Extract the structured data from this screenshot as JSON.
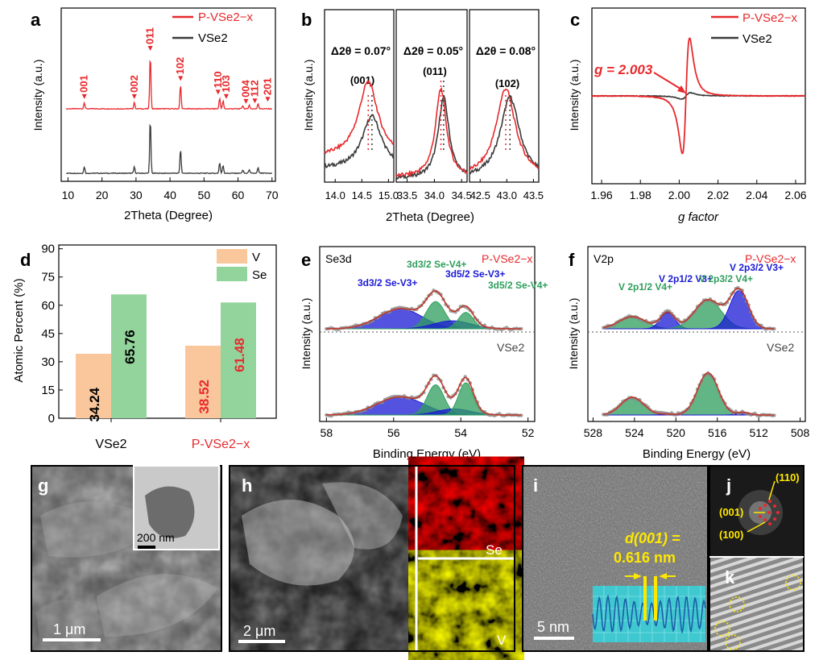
{
  "colors": {
    "pvse2": "#e8292c",
    "vse2": "#3a3a3a",
    "bar_v": "#f9c79b",
    "bar_se": "#93d49c",
    "blue": "#1a1ad6",
    "green": "#2e9e5c",
    "yellow": "#ffe800"
  },
  "panels": {
    "a": {
      "letter": "a"
    },
    "b": {
      "letter": "b"
    },
    "c": {
      "letter": "c"
    },
    "d": {
      "letter": "d"
    },
    "e": {
      "letter": "e"
    },
    "f": {
      "letter": "f"
    },
    "g": {
      "letter": "g",
      "scale": "1 μm",
      "inset_scale": "200 nm"
    },
    "h": {
      "letter": "h",
      "scale": "2 μm",
      "map_se": "Se",
      "map_v": "V"
    },
    "i": {
      "letter": "i",
      "scale": "5 nm",
      "d_label": "d(001) =",
      "d_value": "0.616 nm"
    },
    "j": {
      "letter": "j",
      "spots": [
        "(110)",
        "(001)",
        "(100)"
      ]
    },
    "k": {
      "letter": "k"
    }
  },
  "chart_data": [
    {
      "id": "a",
      "type": "line",
      "title": "",
      "xlabel": "2Theta (Degree)",
      "ylabel": "Intensity (a.u.)",
      "xlim": [
        8,
        71
      ],
      "xticks": [
        10,
        20,
        30,
        40,
        50,
        60,
        70
      ],
      "legend": [
        "P-VSe2−x",
        "VSe2"
      ],
      "peaks": [
        {
          "label": "001",
          "x": 14.8
        },
        {
          "label": "002",
          "x": 29.5
        },
        {
          "label": "011",
          "x": 34.2
        },
        {
          "label": "102",
          "x": 43.1
        },
        {
          "label": "110",
          "x": 54.6
        },
        {
          "label": "103",
          "x": 55.6
        },
        {
          "label": "004",
          "x": 61.4
        },
        {
          "label": "112",
          "x": 63.3
        },
        {
          "label": "201",
          "x": 65.9
        }
      ]
    },
    {
      "id": "b",
      "type": "line",
      "xlabel": "2Theta (Degree)",
      "ylabel": "Intensity (a.u.)",
      "subpanels": [
        {
          "delta": "Δ2θ = 0.07°",
          "hkl": "(001)",
          "ticks": [
            "14.0",
            "14.5",
            "15.0"
          ],
          "xlim": [
            13.8,
            15.1
          ],
          "center_pvse": 14.62,
          "center_vse": 14.69
        },
        {
          "delta": "Δ2θ = 0.05°",
          "hkl": "(011)",
          "ticks": [
            "33.5",
            "34.0",
            "34.5"
          ],
          "xlim": [
            33.3,
            34.6
          ],
          "center_pvse": 34.12,
          "center_vse": 34.17
        },
        {
          "delta": "Δ2θ = 0.08°",
          "hkl": "(102)",
          "ticks": [
            "42.5",
            "43.0",
            "43.5"
          ],
          "xlim": [
            42.3,
            43.6
          ],
          "center_pvse": 42.98,
          "center_vse": 43.06
        }
      ]
    },
    {
      "id": "c",
      "type": "line",
      "xlabel": "g factor",
      "ylabel": "Intensity (a.u.)",
      "xlim": [
        1.955,
        2.065
      ],
      "xticks": [
        "1.96",
        "1.98",
        "2.00",
        "2.02",
        "2.04",
        "2.06"
      ],
      "legend": [
        "P-VSe2−x",
        "VSe2"
      ],
      "annotation": "g = 2.003"
    },
    {
      "id": "d",
      "type": "bar",
      "xlabel": "",
      "ylabel": "Atomic Percent (%)",
      "ylim": [
        0,
        92
      ],
      "yticks": [
        "0",
        "15",
        "30",
        "45",
        "60",
        "75",
        "90"
      ],
      "categories": [
        "VSe2",
        "P-VSe2−x"
      ],
      "series": [
        {
          "name": "V",
          "values": [
            34.24,
            38.52
          ],
          "labels": [
            "34.24",
            "38.52"
          ]
        },
        {
          "name": "Se",
          "values": [
            65.76,
            61.48
          ],
          "labels": [
            "65.76",
            "61.48"
          ]
        }
      ],
      "legend": [
        "V",
        "Se"
      ]
    },
    {
      "id": "e",
      "type": "line",
      "title": "Se3d",
      "xlabel": "Binding Energy (eV)",
      "ylabel": "Intensity (a.u.)",
      "xlim": [
        58.2,
        51.8
      ],
      "xticks": [
        "58",
        "56",
        "54",
        "52"
      ],
      "labels": {
        "top": "P-VSe2−x",
        "bottom": "VSe2"
      },
      "peaks": [
        "3d3/2 Se-V3+",
        "3d3/2 Se-V4+",
        "3d5/2 Se-V3+",
        "3d5/2 Se-V4+"
      ]
    },
    {
      "id": "f",
      "type": "line",
      "title": "V2p",
      "xlabel": "Binding Energy (eV)",
      "ylabel": "Intensity (a.u.)",
      "xlim": [
        528.5,
        507.5
      ],
      "xticks": [
        "528",
        "524",
        "520",
        "516",
        "512",
        "508"
      ],
      "labels": {
        "top": "P-VSe2−x",
        "bottom": "VSe2"
      },
      "peaks": [
        "V 2p1/2 V4+",
        "V 2p1/2 V3+",
        "V 2p3/2 V4+",
        "V 2p3/2 V3+"
      ]
    }
  ]
}
